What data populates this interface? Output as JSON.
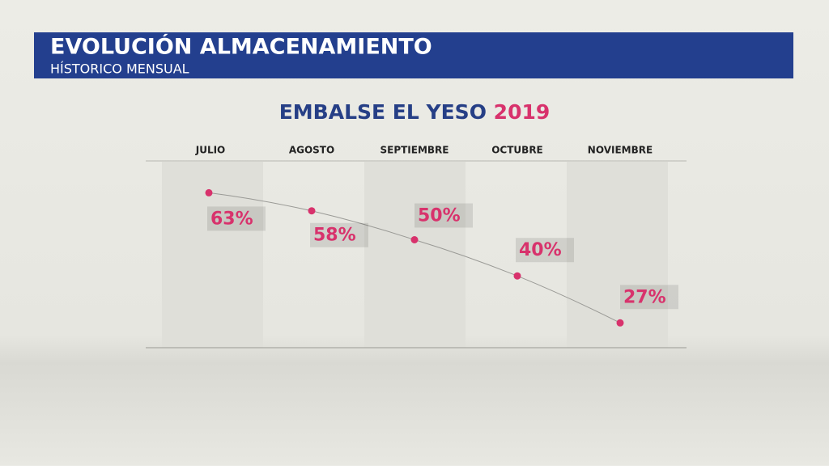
{
  "header": {
    "title": "EVOLUCIÓN ALMACENAMIENTO",
    "subtitle": "HÍSTORICO MENSUAL"
  },
  "chart_data": {
    "type": "line",
    "title": "EMBALSE EL YESO",
    "title_highlight": "2019",
    "categories": [
      "JULIO",
      "AGOSTO",
      "SEPTIEMBRE",
      "OCTUBRE",
      "NOVIEMBRE"
    ],
    "values": [
      63,
      58,
      50,
      40,
      27
    ],
    "value_labels": [
      "63%",
      "58%",
      "50%",
      "40%",
      "27%"
    ],
    "color": "#d8326c",
    "line_color": "#9a9a96",
    "title_color": "#263f86"
  }
}
